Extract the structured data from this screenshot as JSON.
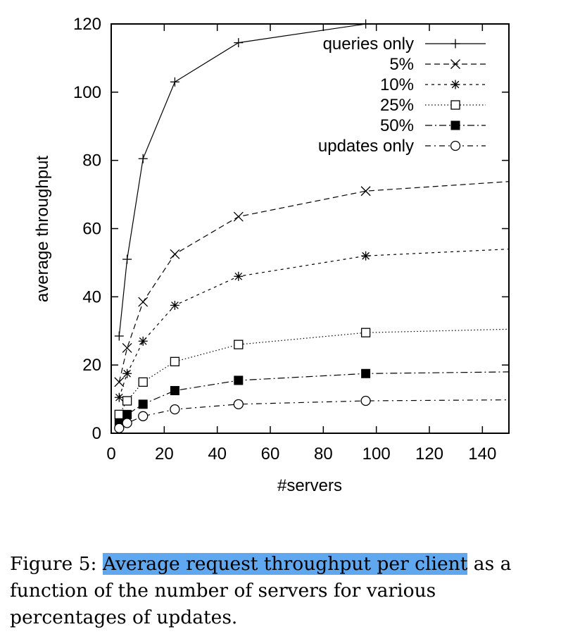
{
  "chart_data": {
    "type": "line",
    "xlabel": "#servers",
    "ylabel": "average throughput",
    "xlim": [
      0,
      150
    ],
    "ylim": [
      0,
      120
    ],
    "xticks": [
      0,
      20,
      40,
      60,
      80,
      100,
      120,
      140
    ],
    "yticks": [
      0,
      20,
      40,
      60,
      80,
      100,
      120
    ],
    "grid": false,
    "legend_position": "top-right",
    "x": [
      3,
      6,
      12,
      24,
      48,
      96
    ],
    "series": [
      {
        "name": "queries only",
        "marker": "plus",
        "dash": "solid",
        "values": [
          28.5,
          51,
          80.5,
          103,
          114.5,
          120
        ]
      },
      {
        "name": "5%",
        "marker": "x",
        "dash": "dashed",
        "values": [
          15,
          25,
          38.5,
          52.5,
          63.5,
          71
        ],
        "continues_to": [
          150,
          73.8
        ]
      },
      {
        "name": "10%",
        "marker": "star",
        "dash": "short-dashed",
        "values": [
          10.5,
          17.5,
          27,
          37.5,
          46,
          52
        ],
        "continues_to": [
          150,
          54
        ]
      },
      {
        "name": "25%",
        "marker": "open-square",
        "dash": "dotted",
        "values": [
          5.5,
          9.5,
          15,
          21,
          26,
          29.5
        ],
        "continues_to": [
          150,
          30.5
        ]
      },
      {
        "name": "50%",
        "marker": "filled-square",
        "dash": "dash-dot",
        "values": [
          3,
          5.5,
          8.5,
          12.5,
          15.5,
          17.5
        ],
        "continues_to": [
          150,
          18
        ]
      },
      {
        "name": "updates only",
        "marker": "open-circle",
        "dash": "dash-dot-light",
        "values": [
          1.5,
          3,
          5,
          7,
          8.5,
          9.5
        ],
        "continues_to": [
          150,
          9.8
        ]
      }
    ]
  },
  "caption": {
    "prefix": "Figure 5: ",
    "highlight": "Average request throughput per client",
    "rest": " as a function of the number of servers for various percentages of updates."
  }
}
